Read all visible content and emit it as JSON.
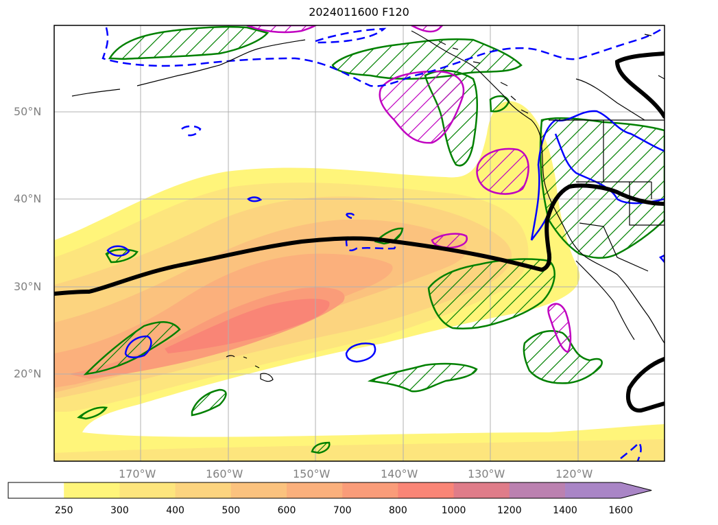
{
  "title": "2024011600 F120",
  "axes": {
    "lon_labels": [
      "170°W",
      "160°W",
      "150°W",
      "140°W",
      "130°W",
      "120°W"
    ],
    "lat_labels": [
      "50°N",
      "40°N",
      "30°N",
      "20°N"
    ]
  },
  "colorbar": {
    "levels": [
      "250",
      "300",
      "400",
      "500",
      "600",
      "700",
      "800",
      "1000",
      "1200",
      "1400",
      "1600"
    ],
    "colors": [
      "#ffffff",
      "#fff57a",
      "#fde57d",
      "#fcd47f",
      "#fbc27e",
      "#fbb07c",
      "#fa9c79",
      "#f98576",
      "#df7c89",
      "#bb81b0",
      "#a985c6",
      "#a985c6"
    ],
    "extend": "max"
  },
  "legend_colors": {
    "ivt_contour": "#000000",
    "green_hatch": "#008000",
    "magenta_hatch": "#c000c0",
    "blue_contour": "#0000ff",
    "coastline": "#000000"
  }
}
